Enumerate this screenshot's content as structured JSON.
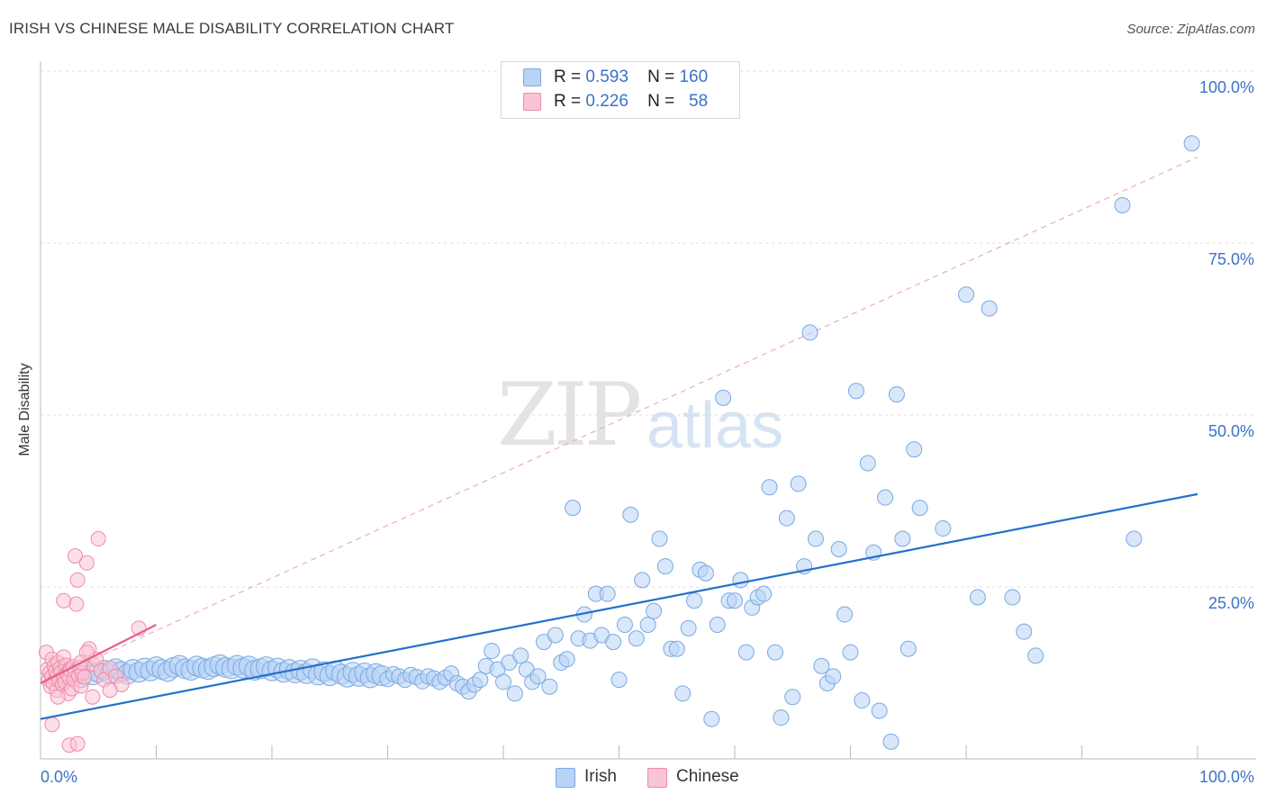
{
  "header": {
    "title": "IRISH VS CHINESE MALE DISABILITY CORRELATION CHART",
    "source": "Source: ZipAtlas.com"
  },
  "watermark": {
    "zip": "ZIP",
    "atlas": "atlas"
  },
  "stats": {
    "irish": {
      "r_label": "R =",
      "r": "0.593",
      "n_label": "N =",
      "n": "160"
    },
    "chinese": {
      "r_label": "R =",
      "r": "0.226",
      "n_label": "N =",
      "n": "58"
    }
  },
  "legend": {
    "irish": "Irish",
    "chinese": "Chinese"
  },
  "colors": {
    "irish_fill": "#b8d4f5",
    "irish_stroke": "#7aa9e0",
    "irish_line": "#2470cc",
    "chinese_fill": "#f9c5d5",
    "chinese_stroke": "#ef8aa8",
    "chinese_line": "#e8608a",
    "tick_label": "#3a73c8"
  },
  "chart_data": {
    "type": "scatter",
    "title": "IRISH VS CHINESE MALE DISABILITY CORRELATION CHART",
    "xlabel": "",
    "ylabel": "Male Disability",
    "xlim": [
      0,
      100
    ],
    "ylim": [
      0,
      100
    ],
    "x_tick_labels": [
      "0.0%",
      "100.0%"
    ],
    "y_ticks": [
      25,
      50,
      75,
      100
    ],
    "y_tick_labels": [
      "25.0%",
      "50.0%",
      "75.0%",
      "100.0%"
    ],
    "grid": true,
    "series": [
      {
        "name": "Irish",
        "trendline": {
          "x": [
            0,
            100
          ],
          "y": [
            5.8,
            38.5
          ]
        },
        "points": [
          [
            1.5,
            12.0
          ],
          [
            2.0,
            12.8
          ],
          [
            2.5,
            12.3
          ],
          [
            3.0,
            12.5
          ],
          [
            3.5,
            11.8
          ],
          [
            4.0,
            13.0
          ],
          [
            4.5,
            12.2
          ],
          [
            5.0,
            12.6
          ],
          [
            5.5,
            12.9
          ],
          [
            6.0,
            12.4
          ],
          [
            6.5,
            13.1
          ],
          [
            7.0,
            12.7
          ],
          [
            7.5,
            12.3
          ],
          [
            8.0,
            13.0
          ],
          [
            8.5,
            12.6
          ],
          [
            9.0,
            13.2
          ],
          [
            9.5,
            12.8
          ],
          [
            10.0,
            13.4
          ],
          [
            10.5,
            13.0
          ],
          [
            11.0,
            12.7
          ],
          [
            11.5,
            13.3
          ],
          [
            12.0,
            13.6
          ],
          [
            12.5,
            13.1
          ],
          [
            13.0,
            12.9
          ],
          [
            13.5,
            13.5
          ],
          [
            14.0,
            13.2
          ],
          [
            14.5,
            13.0
          ],
          [
            15.0,
            13.4
          ],
          [
            15.5,
            13.7
          ],
          [
            16.0,
            13.3
          ],
          [
            16.5,
            13.1
          ],
          [
            17.0,
            13.6
          ],
          [
            17.5,
            13.2
          ],
          [
            18.0,
            13.5
          ],
          [
            18.5,
            12.9
          ],
          [
            19.0,
            13.1
          ],
          [
            19.5,
            13.4
          ],
          [
            20.0,
            12.8
          ],
          [
            20.5,
            13.2
          ],
          [
            21.0,
            12.6
          ],
          [
            21.5,
            13.0
          ],
          [
            22.0,
            12.5
          ],
          [
            22.5,
            12.9
          ],
          [
            23.0,
            12.4
          ],
          [
            23.5,
            13.1
          ],
          [
            24.0,
            12.2
          ],
          [
            24.5,
            12.7
          ],
          [
            25.0,
            12.1
          ],
          [
            25.5,
            12.8
          ],
          [
            26.0,
            12.3
          ],
          [
            26.5,
            11.9
          ],
          [
            27.0,
            12.6
          ],
          [
            27.5,
            12.0
          ],
          [
            28.0,
            12.5
          ],
          [
            28.5,
            11.8
          ],
          [
            29.0,
            12.4
          ],
          [
            29.5,
            12.1
          ],
          [
            30.0,
            11.6
          ],
          [
            30.5,
            12.3
          ],
          [
            31.0,
            12.0
          ],
          [
            31.5,
            11.5
          ],
          [
            32.0,
            12.2
          ],
          [
            32.5,
            11.9
          ],
          [
            33.0,
            11.3
          ],
          [
            33.5,
            12.0
          ],
          [
            34.0,
            11.7
          ],
          [
            34.5,
            11.2
          ],
          [
            35.0,
            11.8
          ],
          [
            35.5,
            12.4
          ],
          [
            36.0,
            11.0
          ],
          [
            36.5,
            10.5
          ],
          [
            37.0,
            9.8
          ],
          [
            37.5,
            10.8
          ],
          [
            38.0,
            11.5
          ],
          [
            38.5,
            13.5
          ],
          [
            39.0,
            15.7
          ],
          [
            39.5,
            13.0
          ],
          [
            40.0,
            11.2
          ],
          [
            40.5,
            14.0
          ],
          [
            41.0,
            9.5
          ],
          [
            41.5,
            15.0
          ],
          [
            42.0,
            13.0
          ],
          [
            42.5,
            11.2
          ],
          [
            43.0,
            12.0
          ],
          [
            43.5,
            17.0
          ],
          [
            44.0,
            10.5
          ],
          [
            44.5,
            18.0
          ],
          [
            45.0,
            14.0
          ],
          [
            45.5,
            14.5
          ],
          [
            46.0,
            36.5
          ],
          [
            46.5,
            17.5
          ],
          [
            47.0,
            21.0
          ],
          [
            47.5,
            17.2
          ],
          [
            48.0,
            24.0
          ],
          [
            48.5,
            18.0
          ],
          [
            49.0,
            24.0
          ],
          [
            49.5,
            17.0
          ],
          [
            50.0,
            11.5
          ],
          [
            50.5,
            19.5
          ],
          [
            51.0,
            35.5
          ],
          [
            51.5,
            17.5
          ],
          [
            52.0,
            26.0
          ],
          [
            52.5,
            19.5
          ],
          [
            53.0,
            21.5
          ],
          [
            53.5,
            32.0
          ],
          [
            54.0,
            28.0
          ],
          [
            54.5,
            16.0
          ],
          [
            55.0,
            16.0
          ],
          [
            55.5,
            9.5
          ],
          [
            56.0,
            19.0
          ],
          [
            56.5,
            23.0
          ],
          [
            57.0,
            27.5
          ],
          [
            57.5,
            27.0
          ],
          [
            58.0,
            5.8
          ],
          [
            58.5,
            19.5
          ],
          [
            59.0,
            52.5
          ],
          [
            59.5,
            23.0
          ],
          [
            60.0,
            23.0
          ],
          [
            60.5,
            26.0
          ],
          [
            61.0,
            15.5
          ],
          [
            61.5,
            22.0
          ],
          [
            62.0,
            23.5
          ],
          [
            62.5,
            24.0
          ],
          [
            63.0,
            39.5
          ],
          [
            63.5,
            15.5
          ],
          [
            64.0,
            6.0
          ],
          [
            64.5,
            35.0
          ],
          [
            65.0,
            9.0
          ],
          [
            65.5,
            40.0
          ],
          [
            66.0,
            28.0
          ],
          [
            66.5,
            62.0
          ],
          [
            67.0,
            32.0
          ],
          [
            67.5,
            13.5
          ],
          [
            68.0,
            11.0
          ],
          [
            68.5,
            12.0
          ],
          [
            69.0,
            30.5
          ],
          [
            69.5,
            21.0
          ],
          [
            70.0,
            15.5
          ],
          [
            70.5,
            53.5
          ],
          [
            71.0,
            8.5
          ],
          [
            71.5,
            43.0
          ],
          [
            72.0,
            30.0
          ],
          [
            72.5,
            7.0
          ],
          [
            73.0,
            38.0
          ],
          [
            73.5,
            2.5
          ],
          [
            74.0,
            53.0
          ],
          [
            74.5,
            32.0
          ],
          [
            75.0,
            16.0
          ],
          [
            75.5,
            45.0
          ],
          [
            76.0,
            36.5
          ],
          [
            78.0,
            33.5
          ],
          [
            80.0,
            67.5
          ],
          [
            81.0,
            23.5
          ],
          [
            82.0,
            65.5
          ],
          [
            84.0,
            23.5
          ],
          [
            85.0,
            18.5
          ],
          [
            86.0,
            15.0
          ],
          [
            93.5,
            80.5
          ],
          [
            94.5,
            32.0
          ],
          [
            99.5,
            89.5
          ]
        ]
      },
      {
        "name": "Chinese",
        "trendline": {
          "x": [
            0,
            10
          ],
          "y": [
            11.0,
            19.5
          ]
        },
        "extension": {
          "x": [
            0,
            100
          ],
          "y": [
            11.0,
            87.5
          ]
        },
        "points": [
          [
            0.5,
            15.5
          ],
          [
            0.6,
            13.0
          ],
          [
            0.7,
            11.5
          ],
          [
            0.8,
            12.5
          ],
          [
            0.9,
            10.5
          ],
          [
            1.0,
            14.5
          ],
          [
            1.0,
            12.0
          ],
          [
            1.1,
            11.0
          ],
          [
            1.2,
            13.5
          ],
          [
            1.3,
            12.8
          ],
          [
            1.4,
            10.0
          ],
          [
            1.5,
            14.0
          ],
          [
            1.5,
            12.2
          ],
          [
            1.6,
            11.4
          ],
          [
            1.7,
            13.2
          ],
          [
            1.8,
            12.6
          ],
          [
            1.9,
            10.8
          ],
          [
            2.0,
            14.8
          ],
          [
            2.0,
            12.0
          ],
          [
            2.1,
            11.2
          ],
          [
            2.2,
            13.6
          ],
          [
            2.3,
            12.4
          ],
          [
            2.4,
            9.5
          ],
          [
            2.5,
            13.0
          ],
          [
            2.5,
            11.8
          ],
          [
            2.6,
            12.9
          ],
          [
            2.7,
            10.2
          ],
          [
            2.8,
            13.4
          ],
          [
            2.9,
            11.6
          ],
          [
            3.0,
            12.7
          ],
          [
            3.0,
            29.5
          ],
          [
            3.1,
            22.5
          ],
          [
            3.2,
            26.0
          ],
          [
            3.3,
            12.1
          ],
          [
            3.4,
            13.3
          ],
          [
            3.5,
            10.6
          ],
          [
            3.6,
            12.5
          ],
          [
            3.8,
            11.9
          ],
          [
            4.0,
            28.5
          ],
          [
            4.2,
            16.0
          ],
          [
            4.5,
            13.8
          ],
          [
            4.8,
            14.5
          ],
          [
            5.0,
            32.0
          ],
          [
            5.2,
            12.8
          ],
          [
            5.5,
            11.5
          ],
          [
            6.0,
            13.2
          ],
          [
            6.5,
            12.0
          ],
          [
            7.0,
            10.8
          ],
          [
            1.0,
            5.0
          ],
          [
            2.5,
            2.0
          ],
          [
            3.2,
            2.2
          ],
          [
            4.5,
            9.0
          ],
          [
            6.0,
            10.0
          ],
          [
            8.5,
            19.0
          ],
          [
            2.0,
            23.0
          ],
          [
            1.5,
            9.0
          ],
          [
            4.0,
            15.5
          ],
          [
            3.5,
            14.0
          ]
        ]
      }
    ]
  }
}
